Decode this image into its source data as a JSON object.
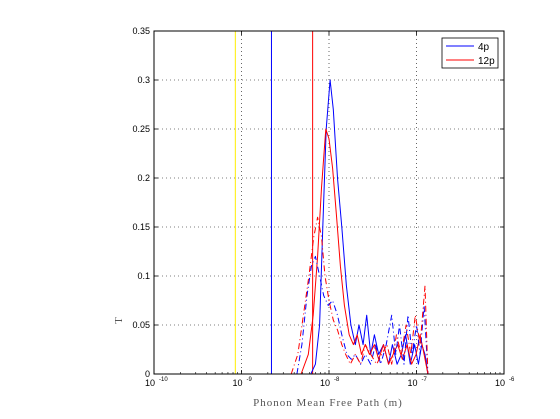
{
  "chart_data": {
    "type": "line",
    "title": "",
    "xlabel": "Phonon Mean Free Path (m)",
    "ylabel": "T",
    "x_scale": "log",
    "xlim": [
      1e-10,
      1e-06
    ],
    "ylim": [
      0,
      0.35
    ],
    "x_ticks": [
      {
        "value": 1e-10,
        "base": "10",
        "exp": "-10"
      },
      {
        "value": 1e-09,
        "base": "10",
        "exp": "-9"
      },
      {
        "value": 1e-08,
        "base": "10",
        "exp": "-8"
      },
      {
        "value": 1e-07,
        "base": "10",
        "exp": "-7"
      },
      {
        "value": 1e-06,
        "base": "10",
        "exp": "-6"
      }
    ],
    "y_ticks": [
      "0",
      "0.05",
      "0.1",
      "0.15",
      "0.2",
      "0.25",
      "0.3",
      "0.35"
    ],
    "grid": true,
    "legend": {
      "placement": "top-right",
      "entries": [
        "4p",
        "12p"
      ]
    },
    "vertical_lines": [
      {
        "name": "yellow-marker",
        "x": 8.5e-10,
        "color": "#ffee00"
      },
      {
        "name": "blue-marker",
        "x": 2.2e-09,
        "color": "#0000ff"
      },
      {
        "name": "red-marker",
        "x": 6.5e-09,
        "color": "#ff0000"
      }
    ],
    "series": [
      {
        "name": "4p",
        "color": "#0000ff",
        "style": "solid",
        "points": [
          [
            6.2e-09,
            0.0
          ],
          [
            7e-09,
            0.01
          ],
          [
            7.8e-09,
            0.05
          ],
          [
            8.5e-09,
            0.15
          ],
          [
            9.3e-09,
            0.25
          ],
          [
            1.03e-08,
            0.3
          ],
          [
            1.12e-08,
            0.27
          ],
          [
            1.25e-08,
            0.2
          ],
          [
            1.4e-08,
            0.15
          ],
          [
            1.58e-08,
            0.09
          ],
          [
            1.78e-08,
            0.05
          ],
          [
            2e-08,
            0.03
          ],
          [
            2.2e-08,
            0.05
          ],
          [
            2.45e-08,
            0.03
          ],
          [
            2.7e-08,
            0.06
          ],
          [
            3e-08,
            0.02
          ],
          [
            3.3e-08,
            0.04
          ],
          [
            3.7e-08,
            0.02
          ],
          [
            4.2e-08,
            0.03
          ],
          [
            4.8e-08,
            0.01
          ],
          [
            5.3e-08,
            0.03
          ],
          [
            6e-08,
            0.01
          ],
          [
            6.7e-08,
            0.02
          ],
          [
            7.5e-08,
            0.04
          ],
          [
            8.5e-08,
            0.01
          ],
          [
            9.5e-08,
            0.03
          ],
          [
            1.05e-07,
            0.01
          ],
          [
            1.15e-07,
            0.03
          ],
          [
            1.25e-07,
            0.02
          ],
          [
            1.35e-07,
            0.0
          ]
        ]
      },
      {
        "name": "12p",
        "color": "#ff0000",
        "style": "solid",
        "points": [
          [
            4.8e-09,
            0.0
          ],
          [
            5.8e-09,
            0.02
          ],
          [
            6.6e-09,
            0.06
          ],
          [
            7.4e-09,
            0.12
          ],
          [
            8.2e-09,
            0.19
          ],
          [
            9.2e-09,
            0.25
          ],
          [
            1e-08,
            0.24
          ],
          [
            1.1e-08,
            0.21
          ],
          [
            1.22e-08,
            0.16
          ],
          [
            1.35e-08,
            0.11
          ],
          [
            1.5e-08,
            0.07
          ],
          [
            1.7e-08,
            0.04
          ],
          [
            1.9e-08,
            0.03
          ],
          [
            2.1e-08,
            0.04
          ],
          [
            2.35e-08,
            0.02
          ],
          [
            2.6e-08,
            0.03
          ],
          [
            2.9e-08,
            0.02
          ],
          [
            3.3e-08,
            0.03
          ],
          [
            3.7e-08,
            0.015
          ],
          [
            4.2e-08,
            0.03
          ],
          [
            4.8e-08,
            0.01
          ],
          [
            5.4e-08,
            0.02
          ],
          [
            6.1e-08,
            0.03
          ],
          [
            6.9e-08,
            0.015
          ],
          [
            7.8e-08,
            0.03
          ],
          [
            8.8e-08,
            0.01
          ],
          [
            9.9e-08,
            0.02
          ],
          [
            1.1e-07,
            0.04
          ],
          [
            1.22e-07,
            0.02
          ],
          [
            1.35e-07,
            0.0
          ]
        ]
      },
      {
        "name": "4p-dashdot",
        "color": "#0000ff",
        "style": "dashdot",
        "points": [
          [
            4.3e-09,
            0.0
          ],
          [
            4.9e-09,
            0.03
          ],
          [
            5.6e-09,
            0.08
          ],
          [
            6.3e-09,
            0.11
          ],
          [
            7e-09,
            0.12
          ],
          [
            7.8e-09,
            0.1
          ],
          [
            8.7e-09,
            0.08
          ],
          [
            9.8e-09,
            0.07
          ],
          [
            1.1e-08,
            0.075
          ],
          [
            1.25e-08,
            0.06
          ],
          [
            1.4e-08,
            0.04
          ],
          [
            1.6e-08,
            0.02
          ],
          [
            1.8e-08,
            0.015
          ],
          [
            2e-08,
            0.02
          ],
          [
            2.3e-08,
            0.01
          ],
          [
            2.6e-08,
            0.02
          ],
          [
            3e-08,
            0.01
          ],
          [
            3.4e-08,
            0.03
          ],
          [
            3.9e-08,
            0.01
          ],
          [
            4.5e-08,
            0.03
          ],
          [
            5.2e-08,
            0.06
          ],
          [
            5.8e-08,
            0.02
          ],
          [
            6.4e-08,
            0.05
          ],
          [
            7.2e-08,
            0.01
          ],
          [
            8e-08,
            0.06
          ],
          [
            8.9e-08,
            0.02
          ],
          [
            1e-07,
            0.05
          ],
          [
            1.1e-07,
            0.02
          ],
          [
            1.22e-07,
            0.07
          ],
          [
            1.35e-07,
            0.0
          ]
        ]
      },
      {
        "name": "12p-dashdot",
        "color": "#ff0000",
        "style": "dashdot",
        "points": [
          [
            3.7e-09,
            0.0
          ],
          [
            4.4e-09,
            0.02
          ],
          [
            5.1e-09,
            0.06
          ],
          [
            5.9e-09,
            0.1
          ],
          [
            6.7e-09,
            0.14
          ],
          [
            7.4e-09,
            0.16
          ],
          [
            8.2e-09,
            0.14
          ],
          [
            9e-09,
            0.1
          ],
          [
            1e-08,
            0.075
          ],
          [
            1.12e-08,
            0.055
          ],
          [
            1.25e-08,
            0.045
          ],
          [
            1.4e-08,
            0.03
          ],
          [
            1.55e-08,
            0.02
          ],
          [
            1.75e-08,
            0.01
          ],
          [
            2e-08,
            0.02
          ],
          [
            2.3e-08,
            0.01
          ],
          [
            2.6e-08,
            0.03
          ],
          [
            3e-08,
            0.02
          ],
          [
            3.5e-08,
            0.01
          ],
          [
            4e-08,
            0.02
          ],
          [
            4.6e-08,
            0.03
          ],
          [
            5.2e-08,
            0.01
          ],
          [
            5.9e-08,
            0.04
          ],
          [
            6.7e-08,
            0.02
          ],
          [
            7.6e-08,
            0.05
          ],
          [
            8.6e-08,
            0.02
          ],
          [
            9.7e-08,
            0.06
          ],
          [
            1.1e-07,
            0.03
          ],
          [
            1.25e-07,
            0.09
          ],
          [
            1.35e-07,
            0.0
          ]
        ]
      }
    ]
  }
}
